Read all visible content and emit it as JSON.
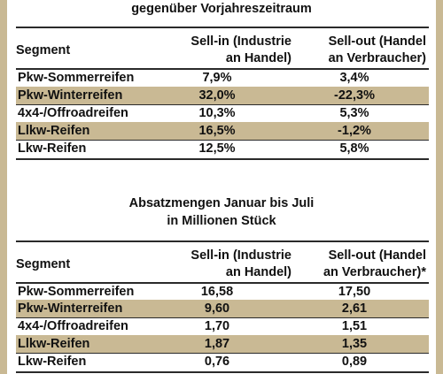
{
  "table1": {
    "title": "gegenüber Vorjahreszeitraum",
    "headers": {
      "segment": "Segment",
      "sell_in_line1": "Sell-in (Industrie",
      "sell_in_line2": "an Handel)",
      "sell_out_line1": "Sell-out (Handel",
      "sell_out_line2": "an Verbraucher)"
    },
    "rows": [
      {
        "segment": "Pkw-Sommerreifen",
        "sell_in": "7,9%",
        "sell_out": "3,4%"
      },
      {
        "segment": "Pkw-Winterreifen",
        "sell_in": "32,0%",
        "sell_out": "-22,3%"
      },
      {
        "segment": "4x4-/Offroadreifen",
        "sell_in": "10,3%",
        "sell_out": "5,3%"
      },
      {
        "segment": "Llkw-Reifen",
        "sell_in": "16,5%",
        "sell_out": "-1,2%"
      },
      {
        "segment": "Lkw-Reifen",
        "sell_in": "12,5%",
        "sell_out": "5,8%"
      }
    ]
  },
  "table2": {
    "title_line1": "Absatzmengen Januar bis Juli",
    "title_line2": "in Millionen Stück",
    "headers": {
      "segment": "Segment",
      "sell_in_line1": "Sell-in (Industrie",
      "sell_in_line2": "an Handel)",
      "sell_out_line1": "Sell-out (Handel",
      "sell_out_line2": "an Verbraucher)*"
    },
    "rows": [
      {
        "segment": "Pkw-Sommerreifen",
        "sell_in": "16,58",
        "sell_out": "17,50"
      },
      {
        "segment": "Pkw-Winterreifen",
        "sell_in": "9,60",
        "sell_out": "2,61"
      },
      {
        "segment": "4x4-/Offroadreifen",
        "sell_in": "1,70",
        "sell_out": "1,51"
      },
      {
        "segment": "Llkw-Reifen",
        "sell_in": "1,87",
        "sell_out": "1,35"
      },
      {
        "segment": "Lkw-Reifen",
        "sell_in": "0,76",
        "sell_out": "0,89"
      }
    ]
  },
  "colors": {
    "shade": "#c9b994",
    "rule": "#2a2a2a",
    "background": "#ffffff"
  }
}
